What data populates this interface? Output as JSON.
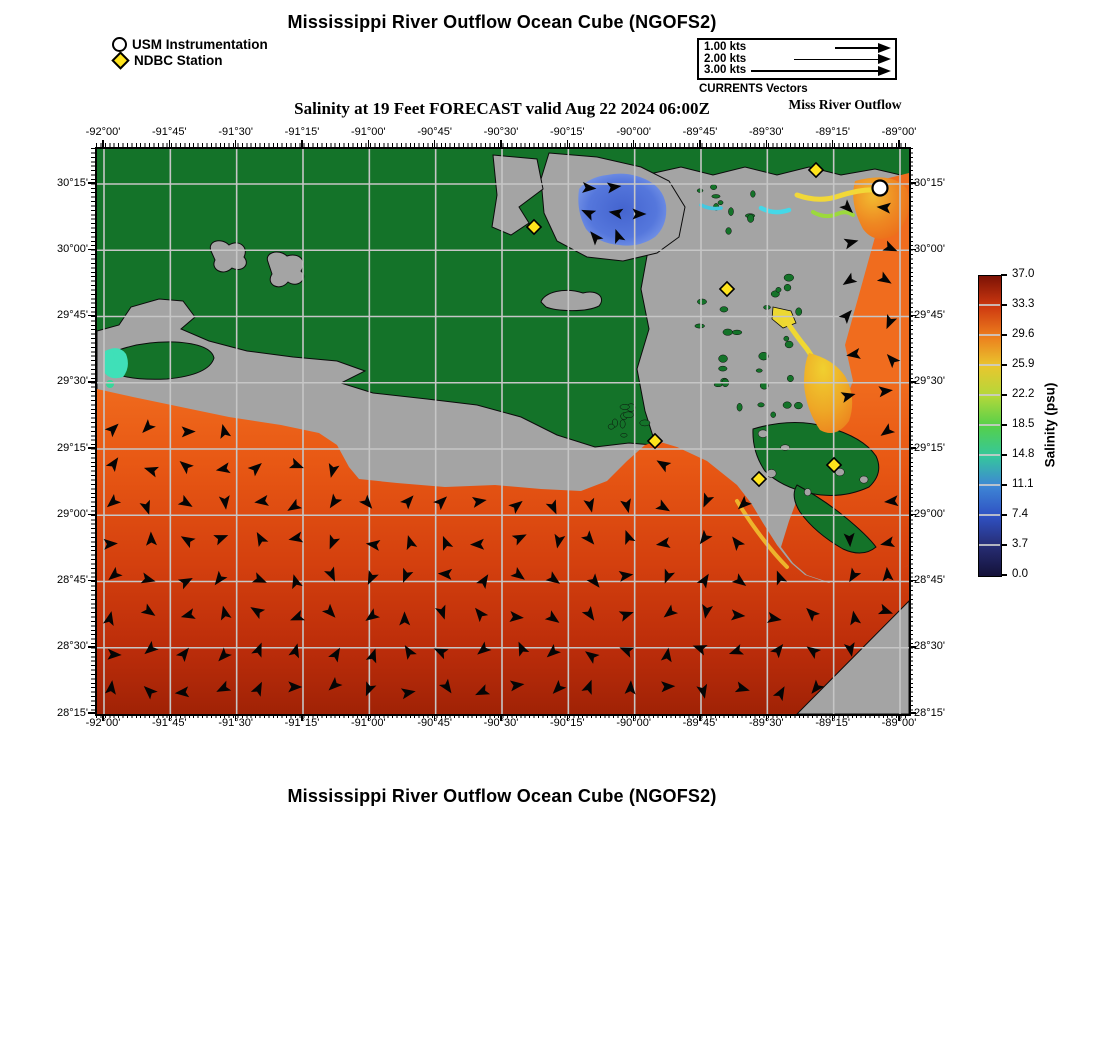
{
  "titles": {
    "top": "Mississippi River Outflow Ocean Cube (NGOFS2)",
    "subtitle": "Salinity at 19 Feet FORECAST valid Aug 22 2024 06:00Z",
    "region": "Miss River Outflow",
    "bottom": "Mississippi River Outflow Ocean Cube (NGOFS2)"
  },
  "legend": {
    "items": [
      {
        "marker": "circle",
        "label": "USM Instrumentation"
      },
      {
        "marker": "diamond",
        "label": "NDBC Station"
      }
    ]
  },
  "vector_key": {
    "caption": "CURRENTS Vectors",
    "entries": [
      {
        "label": "1.00 kts",
        "length": 56
      },
      {
        "label": "2.00 kts",
        "length": 97
      },
      {
        "label": "3.00 kts",
        "length": 140
      }
    ]
  },
  "axes": {
    "lon": [
      "-92°00'",
      "-91°45'",
      "-91°30'",
      "-91°15'",
      "-91°00'",
      "-90°45'",
      "-90°30'",
      "-90°15'",
      "-90°00'",
      "-89°45'",
      "-89°30'",
      "-89°15'",
      "-89°00'"
    ],
    "lat": [
      "30°15'",
      "30°00'",
      "29°45'",
      "29°30'",
      "29°15'",
      "29°00'",
      "28°45'",
      "28°30'",
      "28°15'"
    ]
  },
  "colorbar": {
    "title": "Salinity (psu)",
    "ticks": [
      "37.0",
      "33.3",
      "29.6",
      "25.9",
      "22.2",
      "18.5",
      "14.8",
      "11.1",
      "7.4",
      "3.7",
      "0.0"
    ],
    "stops": [
      [
        0.0,
        "#141239"
      ],
      [
        3.7,
        "#272d74"
      ],
      [
        7.4,
        "#2f51c3"
      ],
      [
        11.1,
        "#3e86d5"
      ],
      [
        14.8,
        "#35c79c"
      ],
      [
        18.5,
        "#55d04a"
      ],
      [
        22.2,
        "#b3d83a"
      ],
      [
        25.9,
        "#e9c62e"
      ],
      [
        29.6,
        "#ec7d1d"
      ],
      [
        33.3,
        "#cd3810"
      ],
      [
        37.0,
        "#7c1205"
      ]
    ]
  },
  "map": {
    "colors": {
      "land_green": "#147329",
      "land_gray": "#a4a4a4",
      "outline": "#0b0b0b",
      "grid": "#c6c6c6",
      "gulf_top": "#f06c1e",
      "gulf_bottom": "#a02206",
      "lake_blue": "#4a6cd6",
      "river_yellow": "#f0d832",
      "cyan_patch": "#3fe0b8",
      "diamond_fill": "#ffe41c",
      "arrow": "#050505"
    },
    "stations": {
      "ndbc": [
        [
          437,
          78
        ],
        [
          719,
          21
        ],
        [
          630,
          140
        ],
        [
          558,
          292
        ],
        [
          662,
          330
        ],
        [
          737,
          316
        ]
      ],
      "usm": [
        [
          783,
          39
        ]
      ]
    },
    "arrows": {
      "spacing": 37,
      "size": 13,
      "lake": [
        [
          492,
          39,
          5
        ],
        [
          517,
          38,
          -8
        ],
        [
          491,
          64,
          205
        ],
        [
          519,
          64,
          190
        ],
        [
          542,
          65,
          0
        ],
        [
          521,
          87,
          250
        ],
        [
          498,
          88,
          230
        ]
      ],
      "west": [
        [
          20,
          210,
          100
        ]
      ]
    }
  }
}
